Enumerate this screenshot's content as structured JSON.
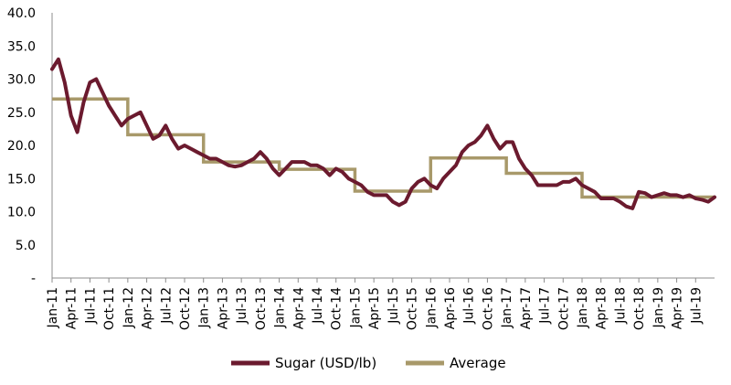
{
  "chart_data": {
    "type": "line",
    "title": "",
    "xlabel": "",
    "ylabel": "",
    "ylim": [
      0,
      40
    ],
    "y_ticks": [
      "-",
      "5.0",
      "10.0",
      "15.0",
      "20.0",
      "25.0",
      "30.0",
      "35.0",
      "40.0"
    ],
    "x_ticks": [
      "Jan-11",
      "Apr-11",
      "Jul-11",
      "Oct-11",
      "Jan-12",
      "Apr-12",
      "Jul-12",
      "Oct-12",
      "Jan-13",
      "Apr-13",
      "Jul-13",
      "Oct-13",
      "Jan-14",
      "Apr-14",
      "Jul-14",
      "Oct-14",
      "Jan-15",
      "Apr-15",
      "Jul-15",
      "Oct-15",
      "Jan-16",
      "Apr-16",
      "Jul-16",
      "Oct-16",
      "Jan-17",
      "Apr-17",
      "Jul-17",
      "Oct-17",
      "Jan-18",
      "Apr-18",
      "Jul-18",
      "Oct-18",
      "Jan-19",
      "Apr-19",
      "Jul-19"
    ],
    "x_range": [
      "2011-01",
      "2019-10"
    ],
    "grid": false,
    "legend": "bottom",
    "series": [
      {
        "name": "Sugar (USD/lb)",
        "color": "#6b1a2e",
        "x": [
          "2011-01",
          "2011-02",
          "2011-03",
          "2011-04",
          "2011-05",
          "2011-06",
          "2011-07",
          "2011-08",
          "2011-09",
          "2011-10",
          "2011-11",
          "2011-12",
          "2012-01",
          "2012-02",
          "2012-03",
          "2012-04",
          "2012-05",
          "2012-06",
          "2012-07",
          "2012-08",
          "2012-09",
          "2012-10",
          "2012-11",
          "2012-12",
          "2013-01",
          "2013-02",
          "2013-03",
          "2013-04",
          "2013-05",
          "2013-06",
          "2013-07",
          "2013-08",
          "2013-09",
          "2013-10",
          "2013-11",
          "2013-12",
          "2014-01",
          "2014-02",
          "2014-03",
          "2014-04",
          "2014-05",
          "2014-06",
          "2014-07",
          "2014-08",
          "2014-09",
          "2014-10",
          "2014-11",
          "2014-12",
          "2015-01",
          "2015-02",
          "2015-03",
          "2015-04",
          "2015-05",
          "2015-06",
          "2015-07",
          "2015-08",
          "2015-09",
          "2015-10",
          "2015-11",
          "2015-12",
          "2016-01",
          "2016-02",
          "2016-03",
          "2016-04",
          "2016-05",
          "2016-06",
          "2016-07",
          "2016-08",
          "2016-09",
          "2016-10",
          "2016-11",
          "2016-12",
          "2017-01",
          "2017-02",
          "2017-03",
          "2017-04",
          "2017-05",
          "2017-06",
          "2017-07",
          "2017-08",
          "2017-09",
          "2017-10",
          "2017-11",
          "2017-12",
          "2018-01",
          "2018-02",
          "2018-03",
          "2018-04",
          "2018-05",
          "2018-06",
          "2018-07",
          "2018-08",
          "2018-09",
          "2018-10",
          "2018-11",
          "2018-12",
          "2019-01",
          "2019-02",
          "2019-03",
          "2019-04",
          "2019-05",
          "2019-06",
          "2019-07",
          "2019-08",
          "2019-09",
          "2019-10"
        ],
        "values": [
          31.5,
          33.0,
          29.5,
          24.5,
          22.0,
          26.5,
          29.5,
          30.0,
          28.0,
          26.0,
          24.5,
          23.0,
          24.0,
          24.5,
          25.0,
          23.0,
          21.0,
          21.5,
          23.0,
          21.0,
          19.5,
          20.0,
          19.5,
          19.0,
          18.5,
          18.0,
          18.0,
          17.5,
          17.0,
          16.8,
          17.0,
          17.5,
          18.0,
          19.0,
          18.0,
          16.5,
          15.5,
          16.5,
          17.5,
          17.5,
          17.5,
          17.0,
          17.0,
          16.5,
          15.5,
          16.5,
          16.0,
          15.0,
          14.5,
          14.0,
          13.0,
          12.5,
          12.5,
          12.5,
          11.5,
          11.0,
          11.5,
          13.5,
          14.5,
          15.0,
          14.0,
          13.5,
          15.0,
          16.0,
          17.0,
          19.0,
          20.0,
          20.5,
          21.5,
          23.0,
          21.0,
          19.5,
          20.5,
          20.5,
          18.0,
          16.5,
          15.5,
          14.0,
          14.0,
          14.0,
          14.0,
          14.5,
          14.5,
          15.0,
          14.0,
          13.5,
          13.0,
          12.0,
          12.0,
          12.0,
          11.5,
          10.8,
          10.5,
          13.0,
          12.8,
          12.2,
          12.5,
          12.8,
          12.5,
          12.5,
          12.2,
          12.5,
          12.0,
          11.8,
          11.5,
          12.2
        ]
      },
      {
        "name": "Average",
        "color": "#a8996a",
        "step": true,
        "segments": [
          {
            "start": "2011-01",
            "end": "2012-01",
            "value": 27.0
          },
          {
            "start": "2012-01",
            "end": "2013-01",
            "value": 21.6
          },
          {
            "start": "2013-01",
            "end": "2014-01",
            "value": 17.5
          },
          {
            "start": "2014-01",
            "end": "2015-01",
            "value": 16.4
          },
          {
            "start": "2015-01",
            "end": "2016-01",
            "value": 13.1
          },
          {
            "start": "2016-01",
            "end": "2017-01",
            "value": 18.1
          },
          {
            "start": "2017-01",
            "end": "2018-01",
            "value": 15.8
          },
          {
            "start": "2018-01",
            "end": "2019-01",
            "value": 12.2
          },
          {
            "start": "2019-01",
            "end": "2019-10",
            "value": 12.2
          }
        ]
      }
    ]
  }
}
